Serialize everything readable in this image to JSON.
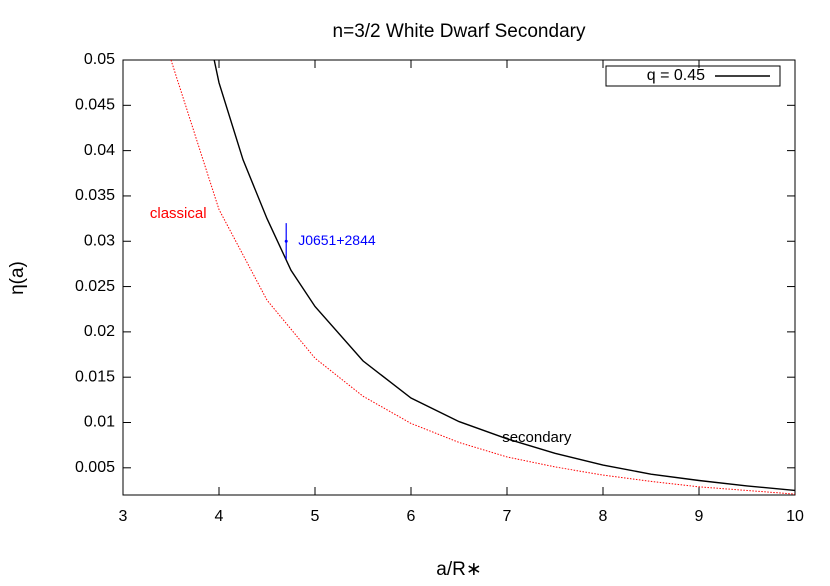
{
  "chart_data": {
    "type": "line",
    "title": "n=3/2 White Dwarf Secondary",
    "xlabel": "a/R∗",
    "ylabel": "η(a)",
    "xlim": [
      3,
      10
    ],
    "ylim": [
      0.002,
      0.05
    ],
    "xticks": [
      3,
      4,
      5,
      6,
      7,
      8,
      9,
      10
    ],
    "yticks": [
      0.005,
      0.01,
      0.015,
      0.02,
      0.025,
      0.03,
      0.035,
      0.04,
      0.045,
      0.05
    ],
    "legend": "upper right",
    "series": [
      {
        "name": "q = 0.45",
        "color": "#000000",
        "style": "solid",
        "x": [
          3.95,
          4,
          4.25,
          4.5,
          4.75,
          5,
          5.5,
          6,
          6.5,
          7,
          7.5,
          8,
          8.5,
          9,
          9.5,
          10
        ],
        "values": [
          0.05,
          0.0475,
          0.039,
          0.0325,
          0.0268,
          0.0228,
          0.0168,
          0.0127,
          0.0101,
          0.0082,
          0.0066,
          0.0053,
          0.0043,
          0.0036,
          0.003,
          0.0025
        ]
      },
      {
        "color": "#ff0000",
        "style": "dotted",
        "x": [
          3.5,
          4,
          4.5,
          5,
          5.5,
          6,
          6.5,
          7,
          7.5,
          8,
          8.5,
          9,
          9.5,
          10
        ],
        "values": [
          0.05,
          0.0335,
          0.0235,
          0.0171,
          0.0129,
          0.0099,
          0.0078,
          0.0062,
          0.0051,
          0.0042,
          0.0035,
          0.0029,
          0.0025,
          0.0021
        ]
      }
    ],
    "points": [
      {
        "name": "J0651+2844",
        "x": 4.7,
        "y": 0.03,
        "err": 0.002,
        "color": "#0000ff"
      }
    ],
    "annotations": [
      {
        "text": "classical",
        "x": 3.28,
        "y": 0.033,
        "color": "#ff0000"
      },
      {
        "text": "secondary",
        "x": 6.95,
        "y": 0.0083,
        "color": "#000000"
      }
    ]
  }
}
